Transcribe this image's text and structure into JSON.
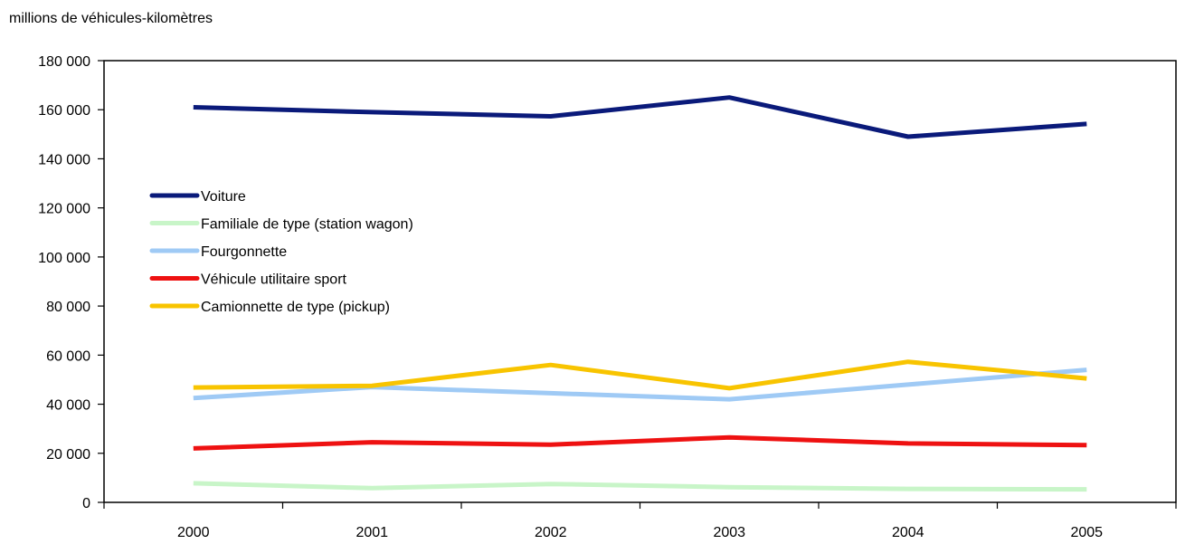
{
  "chart_data": {
    "type": "line",
    "ylabel": "millions de véhicules-kilomètres",
    "categories": [
      "2000",
      "2001",
      "2002",
      "2003",
      "2004",
      "2005"
    ],
    "ylim": [
      0,
      180000
    ],
    "yticks": [
      0,
      20000,
      40000,
      60000,
      80000,
      100000,
      120000,
      140000,
      160000,
      180000
    ],
    "ytick_labels": [
      "0",
      "20 000",
      "40 000",
      "60 000",
      "80 000",
      "100 000",
      "120 000",
      "140 000",
      "160 000",
      "180 000"
    ],
    "grid": false,
    "legend_position": "left",
    "series": [
      {
        "name": "Voiture",
        "color": "#0a1a7a",
        "values": [
          161000,
          159000,
          157300,
          165000,
          149000,
          154200
        ]
      },
      {
        "name": "Familiale de type (station wagon)",
        "color": "#c8f5c8",
        "values": [
          7800,
          5800,
          7500,
          6200,
          5500,
          5300
        ]
      },
      {
        "name": "Fourgonnette",
        "color": "#9fcaf5",
        "values": [
          42500,
          47000,
          44500,
          42000,
          48000,
          54000
        ]
      },
      {
        "name": "Véhicule utilitaire sport",
        "color": "#ee1111",
        "values": [
          22000,
          24500,
          23500,
          26500,
          24000,
          23300
        ]
      },
      {
        "name": "Camionnette de type (pickup)",
        "color": "#f8c400",
        "values": [
          46800,
          47500,
          56000,
          46500,
          57300,
          50500
        ]
      }
    ]
  }
}
